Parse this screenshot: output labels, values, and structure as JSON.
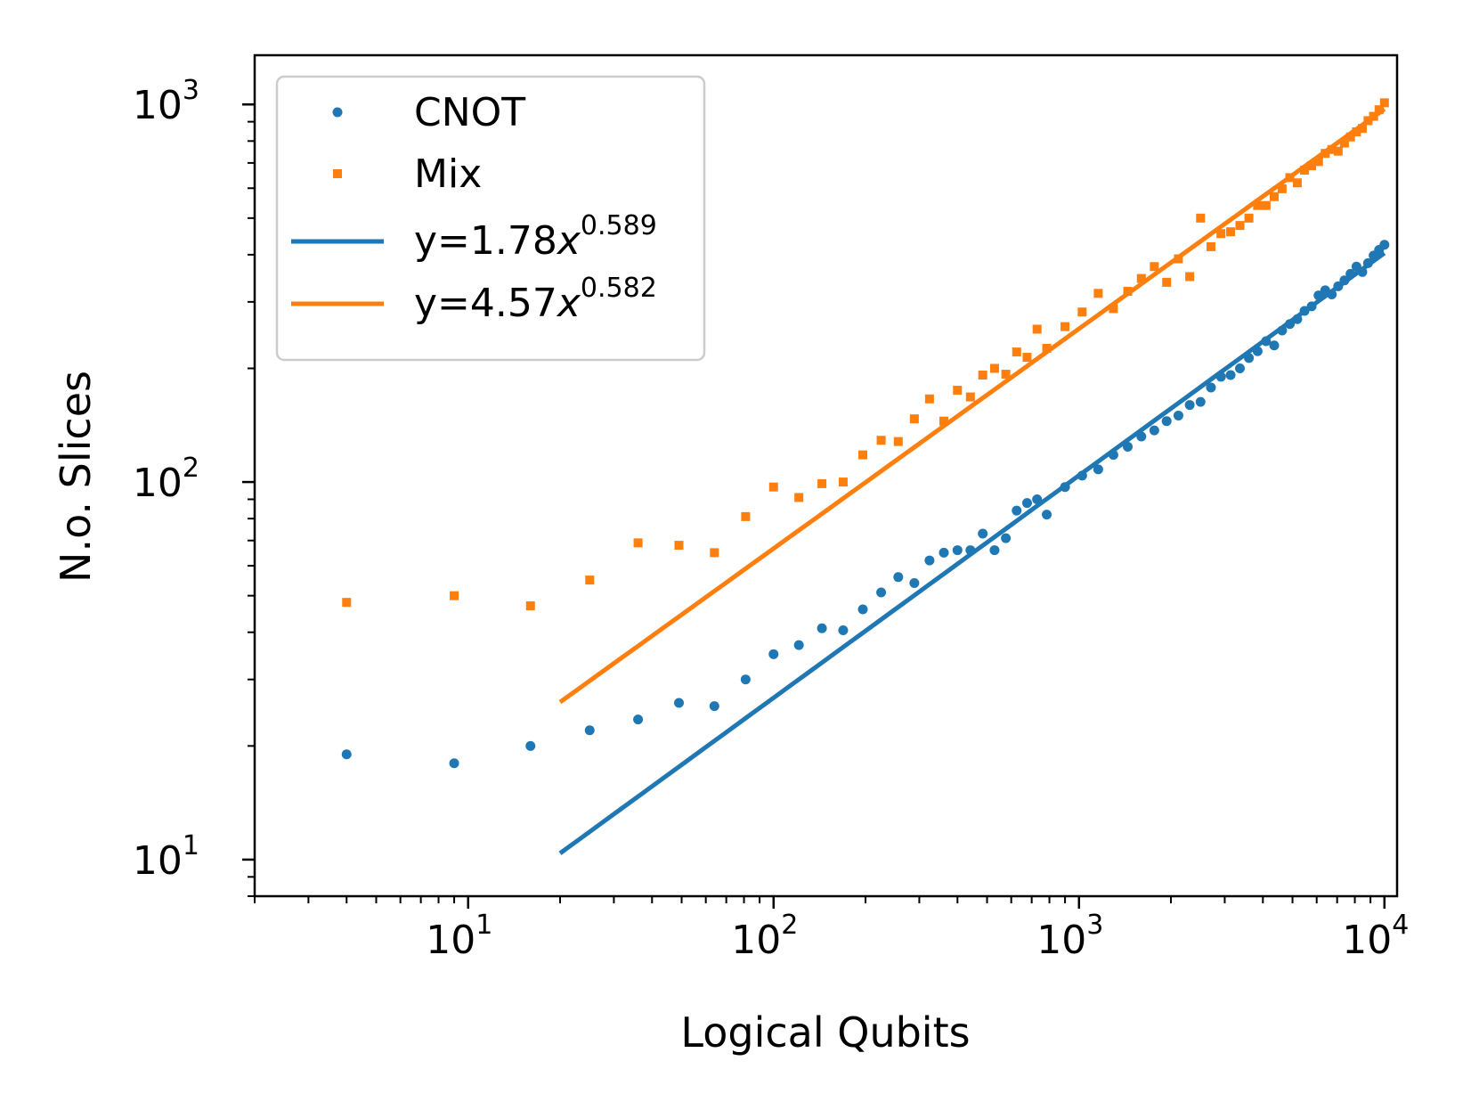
{
  "chart_data": {
    "type": "scatter",
    "xscale": "log",
    "yscale": "log",
    "xlabel": "Logical Qubits",
    "ylabel": "N.o. Slices",
    "xlim": [
      2,
      11000
    ],
    "ylim": [
      8,
      1350
    ],
    "x_ticks": [
      {
        "base": "10",
        "exp": "1",
        "value": 10
      },
      {
        "base": "10",
        "exp": "2",
        "value": 100
      },
      {
        "base": "10",
        "exp": "3",
        "value": 1000
      },
      {
        "base": "10",
        "exp": "4",
        "value": 10000
      }
    ],
    "y_ticks": [
      {
        "base": "10",
        "exp": "1",
        "value": 10
      },
      {
        "base": "10",
        "exp": "2",
        "value": 100
      },
      {
        "base": "10",
        "exp": "3",
        "value": 1000
      }
    ],
    "legend_position": "upper-left",
    "colors": {
      "cnot": "#1f77b4",
      "mix": "#ff7f0e"
    },
    "series": [
      {
        "name": "CNOT",
        "kind": "points",
        "color": "#1f77b4",
        "x": [
          4,
          9,
          16,
          25,
          36,
          49,
          64,
          81,
          100,
          121,
          144,
          169,
          196,
          225,
          256,
          289,
          324,
          361,
          400,
          441,
          484,
          529,
          576,
          625,
          676,
          729,
          784,
          900,
          1024,
          1156,
          1296,
          1444,
          1600,
          1764,
          1936,
          2116,
          2304,
          2500,
          2704,
          2916,
          3136,
          3364,
          3600,
          3844,
          4096,
          4356,
          4624,
          4900,
          5184,
          5476,
          5776,
          6084,
          6400,
          6724,
          7056,
          7396,
          7744,
          8100,
          8464,
          8836,
          9216,
          9604,
          10000
        ],
        "y": [
          19,
          18,
          20,
          22,
          23.5,
          26,
          25.5,
          30,
          35,
          37,
          41,
          40.5,
          46,
          51,
          56,
          54,
          62,
          65,
          66,
          66,
          73,
          66,
          71,
          84,
          88,
          90,
          82,
          97,
          104,
          108,
          118,
          124,
          132,
          137,
          145,
          150,
          160,
          163,
          178,
          190,
          192,
          200,
          213,
          222,
          236,
          230,
          252,
          262,
          270,
          284,
          292,
          312,
          322,
          314,
          330,
          342,
          356,
          372,
          360,
          380,
          398,
          412,
          425
        ]
      },
      {
        "name": "Mix",
        "kind": "points",
        "color": "#ff7f0e",
        "x": [
          4,
          9,
          16,
          25,
          36,
          49,
          64,
          81,
          100,
          121,
          144,
          169,
          196,
          225,
          256,
          289,
          324,
          361,
          400,
          441,
          484,
          529,
          576,
          625,
          676,
          729,
          784,
          900,
          1024,
          1156,
          1296,
          1444,
          1600,
          1764,
          1936,
          2116,
          2304,
          2500,
          2704,
          2916,
          3136,
          3364,
          3600,
          3844,
          4096,
          4356,
          4624,
          4900,
          5184,
          5476,
          5776,
          6084,
          6400,
          6724,
          7056,
          7396,
          7744,
          8100,
          8464,
          8836,
          9216,
          9604,
          10000
        ],
        "y": [
          48,
          50,
          47,
          55,
          69,
          68,
          65,
          81,
          97,
          91,
          99,
          100,
          118,
          129,
          128,
          147,
          166,
          145,
          175,
          168,
          192,
          200,
          193,
          221,
          214,
          254,
          226,
          258,
          282,
          316,
          288,
          320,
          346,
          372,
          338,
          390,
          350,
          500,
          420,
          455,
          460,
          478,
          500,
          540,
          540,
          570,
          598,
          640,
          620,
          670,
          688,
          706,
          742,
          760,
          752,
          790,
          820,
          846,
          864,
          906,
          930,
          968,
          1010
        ]
      },
      {
        "name": "y=1.78x^0.589",
        "label_prefix": "y=1.78",
        "label_var": "x",
        "label_exp": "0.589",
        "kind": "fit",
        "color": "#1f77b4",
        "coef": 1.78,
        "exponent": 0.589,
        "x_range": [
          20,
          10000
        ]
      },
      {
        "name": "y=4.57x^0.582",
        "label_prefix": "y=4.57",
        "label_var": "x",
        "label_exp": "0.582",
        "kind": "fit",
        "color": "#ff7f0e",
        "coef": 4.57,
        "exponent": 0.582,
        "x_range": [
          20,
          10000
        ]
      }
    ]
  }
}
